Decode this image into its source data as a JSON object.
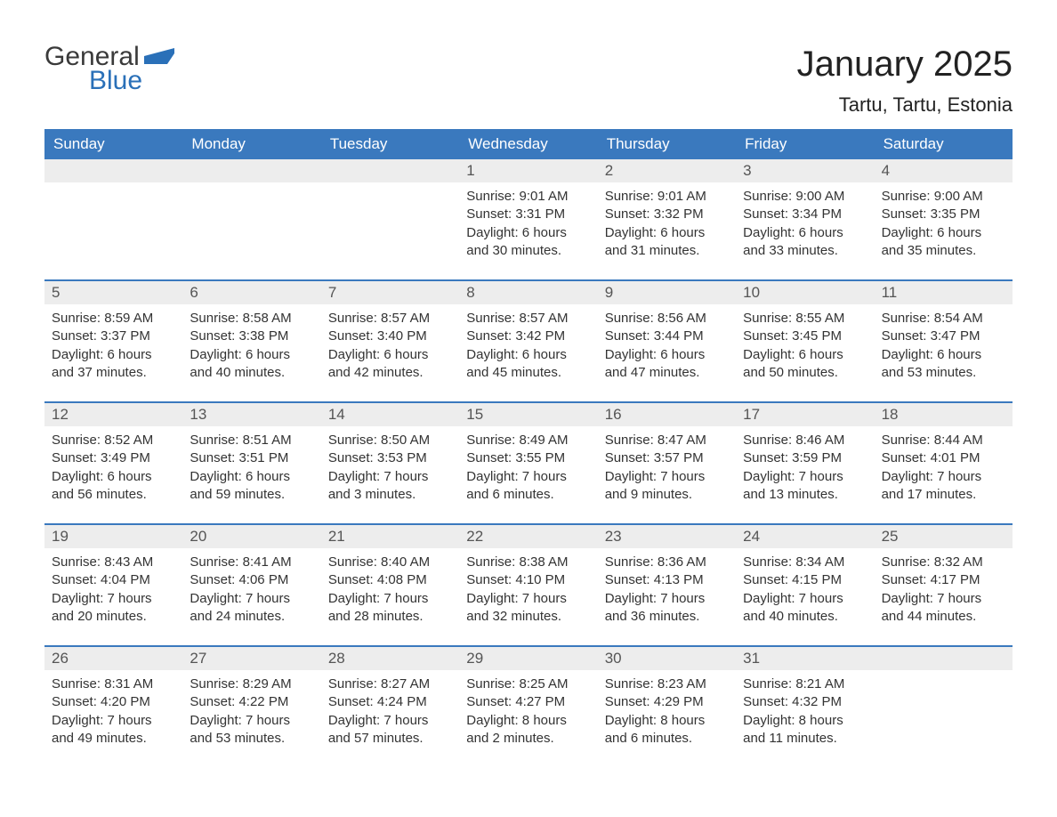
{
  "brand": {
    "general": "General",
    "blue": "Blue"
  },
  "title": "January 2025",
  "location": "Tartu, Tartu, Estonia",
  "colors": {
    "header_bg": "#3a79be",
    "header_text": "#ffffff",
    "daynum_bg": "#ededed",
    "daynum_text": "#555555",
    "body_text": "#333333",
    "logo_gray": "#3a3a3a",
    "logo_blue": "#2a70b8"
  },
  "weekdays": [
    "Sunday",
    "Monday",
    "Tuesday",
    "Wednesday",
    "Thursday",
    "Friday",
    "Saturday"
  ],
  "weeks": [
    [
      null,
      null,
      null,
      {
        "n": "1",
        "sr": "Sunrise: 9:01 AM",
        "ss": "Sunset: 3:31 PM",
        "d1": "Daylight: 6 hours",
        "d2": "and 30 minutes."
      },
      {
        "n": "2",
        "sr": "Sunrise: 9:01 AM",
        "ss": "Sunset: 3:32 PM",
        "d1": "Daylight: 6 hours",
        "d2": "and 31 minutes."
      },
      {
        "n": "3",
        "sr": "Sunrise: 9:00 AM",
        "ss": "Sunset: 3:34 PM",
        "d1": "Daylight: 6 hours",
        "d2": "and 33 minutes."
      },
      {
        "n": "4",
        "sr": "Sunrise: 9:00 AM",
        "ss": "Sunset: 3:35 PM",
        "d1": "Daylight: 6 hours",
        "d2": "and 35 minutes."
      }
    ],
    [
      {
        "n": "5",
        "sr": "Sunrise: 8:59 AM",
        "ss": "Sunset: 3:37 PM",
        "d1": "Daylight: 6 hours",
        "d2": "and 37 minutes."
      },
      {
        "n": "6",
        "sr": "Sunrise: 8:58 AM",
        "ss": "Sunset: 3:38 PM",
        "d1": "Daylight: 6 hours",
        "d2": "and 40 minutes."
      },
      {
        "n": "7",
        "sr": "Sunrise: 8:57 AM",
        "ss": "Sunset: 3:40 PM",
        "d1": "Daylight: 6 hours",
        "d2": "and 42 minutes."
      },
      {
        "n": "8",
        "sr": "Sunrise: 8:57 AM",
        "ss": "Sunset: 3:42 PM",
        "d1": "Daylight: 6 hours",
        "d2": "and 45 minutes."
      },
      {
        "n": "9",
        "sr": "Sunrise: 8:56 AM",
        "ss": "Sunset: 3:44 PM",
        "d1": "Daylight: 6 hours",
        "d2": "and 47 minutes."
      },
      {
        "n": "10",
        "sr": "Sunrise: 8:55 AM",
        "ss": "Sunset: 3:45 PM",
        "d1": "Daylight: 6 hours",
        "d2": "and 50 minutes."
      },
      {
        "n": "11",
        "sr": "Sunrise: 8:54 AM",
        "ss": "Sunset: 3:47 PM",
        "d1": "Daylight: 6 hours",
        "d2": "and 53 minutes."
      }
    ],
    [
      {
        "n": "12",
        "sr": "Sunrise: 8:52 AM",
        "ss": "Sunset: 3:49 PM",
        "d1": "Daylight: 6 hours",
        "d2": "and 56 minutes."
      },
      {
        "n": "13",
        "sr": "Sunrise: 8:51 AM",
        "ss": "Sunset: 3:51 PM",
        "d1": "Daylight: 6 hours",
        "d2": "and 59 minutes."
      },
      {
        "n": "14",
        "sr": "Sunrise: 8:50 AM",
        "ss": "Sunset: 3:53 PM",
        "d1": "Daylight: 7 hours",
        "d2": "and 3 minutes."
      },
      {
        "n": "15",
        "sr": "Sunrise: 8:49 AM",
        "ss": "Sunset: 3:55 PM",
        "d1": "Daylight: 7 hours",
        "d2": "and 6 minutes."
      },
      {
        "n": "16",
        "sr": "Sunrise: 8:47 AM",
        "ss": "Sunset: 3:57 PM",
        "d1": "Daylight: 7 hours",
        "d2": "and 9 minutes."
      },
      {
        "n": "17",
        "sr": "Sunrise: 8:46 AM",
        "ss": "Sunset: 3:59 PM",
        "d1": "Daylight: 7 hours",
        "d2": "and 13 minutes."
      },
      {
        "n": "18",
        "sr": "Sunrise: 8:44 AM",
        "ss": "Sunset: 4:01 PM",
        "d1": "Daylight: 7 hours",
        "d2": "and 17 minutes."
      }
    ],
    [
      {
        "n": "19",
        "sr": "Sunrise: 8:43 AM",
        "ss": "Sunset: 4:04 PM",
        "d1": "Daylight: 7 hours",
        "d2": "and 20 minutes."
      },
      {
        "n": "20",
        "sr": "Sunrise: 8:41 AM",
        "ss": "Sunset: 4:06 PM",
        "d1": "Daylight: 7 hours",
        "d2": "and 24 minutes."
      },
      {
        "n": "21",
        "sr": "Sunrise: 8:40 AM",
        "ss": "Sunset: 4:08 PM",
        "d1": "Daylight: 7 hours",
        "d2": "and 28 minutes."
      },
      {
        "n": "22",
        "sr": "Sunrise: 8:38 AM",
        "ss": "Sunset: 4:10 PM",
        "d1": "Daylight: 7 hours",
        "d2": "and 32 minutes."
      },
      {
        "n": "23",
        "sr": "Sunrise: 8:36 AM",
        "ss": "Sunset: 4:13 PM",
        "d1": "Daylight: 7 hours",
        "d2": "and 36 minutes."
      },
      {
        "n": "24",
        "sr": "Sunrise: 8:34 AM",
        "ss": "Sunset: 4:15 PM",
        "d1": "Daylight: 7 hours",
        "d2": "and 40 minutes."
      },
      {
        "n": "25",
        "sr": "Sunrise: 8:32 AM",
        "ss": "Sunset: 4:17 PM",
        "d1": "Daylight: 7 hours",
        "d2": "and 44 minutes."
      }
    ],
    [
      {
        "n": "26",
        "sr": "Sunrise: 8:31 AM",
        "ss": "Sunset: 4:20 PM",
        "d1": "Daylight: 7 hours",
        "d2": "and 49 minutes."
      },
      {
        "n": "27",
        "sr": "Sunrise: 8:29 AM",
        "ss": "Sunset: 4:22 PM",
        "d1": "Daylight: 7 hours",
        "d2": "and 53 minutes."
      },
      {
        "n": "28",
        "sr": "Sunrise: 8:27 AM",
        "ss": "Sunset: 4:24 PM",
        "d1": "Daylight: 7 hours",
        "d2": "and 57 minutes."
      },
      {
        "n": "29",
        "sr": "Sunrise: 8:25 AM",
        "ss": "Sunset: 4:27 PM",
        "d1": "Daylight: 8 hours",
        "d2": "and 2 minutes."
      },
      {
        "n": "30",
        "sr": "Sunrise: 8:23 AM",
        "ss": "Sunset: 4:29 PM",
        "d1": "Daylight: 8 hours",
        "d2": "and 6 minutes."
      },
      {
        "n": "31",
        "sr": "Sunrise: 8:21 AM",
        "ss": "Sunset: 4:32 PM",
        "d1": "Daylight: 8 hours",
        "d2": "and 11 minutes."
      },
      null
    ]
  ]
}
